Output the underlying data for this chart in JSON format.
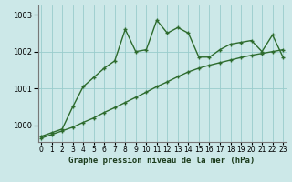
{
  "title": "Graphe pression niveau de la mer (hPa)",
  "bg_color": "#cce8e8",
  "grid_color": "#99cccc",
  "line_color": "#2d6b2d",
  "x_labels": [
    "0",
    "1",
    "2",
    "3",
    "4",
    "5",
    "6",
    "7",
    "8",
    "9",
    "10",
    "11",
    "12",
    "13",
    "14",
    "15",
    "16",
    "17",
    "18",
    "19",
    "20",
    "21",
    "22",
    "23"
  ],
  "ylim": [
    999.55,
    1003.25
  ],
  "yticks": [
    1000,
    1001,
    1002,
    1003
  ],
  "series1": [
    999.7,
    999.8,
    999.9,
    1000.5,
    1001.05,
    1001.3,
    1001.55,
    1001.75,
    1002.6,
    1002.0,
    1002.05,
    1002.85,
    1002.5,
    1002.65,
    1002.5,
    1001.85,
    1001.85,
    1002.05,
    1002.2,
    1002.25,
    1002.3,
    1002.0,
    1002.45,
    1001.85
  ],
  "series2": [
    999.65,
    999.75,
    999.85,
    999.95,
    1000.08,
    1000.2,
    1000.35,
    1000.48,
    1000.62,
    1000.76,
    1000.9,
    1001.05,
    1001.18,
    1001.32,
    1001.45,
    1001.55,
    1001.63,
    1001.7,
    1001.77,
    1001.84,
    1001.9,
    1001.95,
    1002.0,
    1002.05
  ],
  "tick_labelsize": 6,
  "xlabel_fontsize": 6.5,
  "line_width": 1.0,
  "marker_size": 3.0
}
